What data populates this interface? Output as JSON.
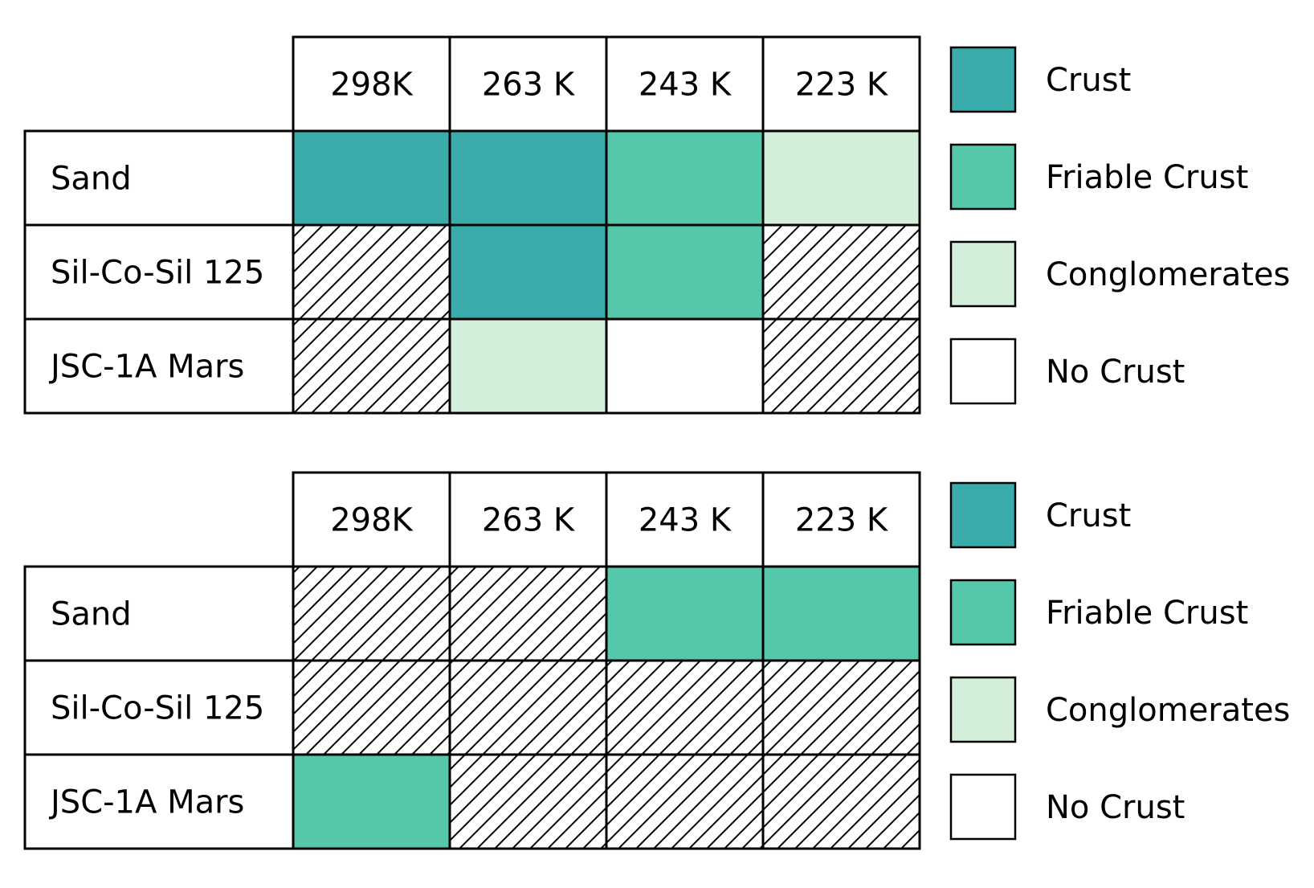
{
  "chart_data": [
    {
      "type": "heatmap",
      "columns": [
        "298K",
        "263 K",
        "243 K",
        "223 K"
      ],
      "rows": [
        "Sand",
        "Sil-Co-Sil 125",
        "JSC-1A Mars"
      ],
      "cells": [
        [
          "crust",
          "crust",
          "friable",
          "conglomerates"
        ],
        [
          "hatched",
          "crust",
          "friable",
          "hatched"
        ],
        [
          "hatched",
          "conglomerates",
          "none",
          "hatched"
        ]
      ],
      "legend": [
        {
          "key": "crust",
          "label": "Crust"
        },
        {
          "key": "friable",
          "label": "Friable Crust"
        },
        {
          "key": "conglomerates",
          "label": "Conglomerates"
        },
        {
          "key": "none",
          "label": "No Crust"
        }
      ]
    },
    {
      "type": "heatmap",
      "columns": [
        "298K",
        "263 K",
        "243 K",
        "223 K"
      ],
      "rows": [
        "Sand",
        "Sil-Co-Sil 125",
        "JSC-1A Mars"
      ],
      "cells": [
        [
          "hatched",
          "hatched",
          "friable",
          "friable"
        ],
        [
          "hatched",
          "hatched",
          "hatched",
          "hatched"
        ],
        [
          "friable",
          "hatched",
          "hatched",
          "hatched"
        ]
      ],
      "legend": [
        {
          "key": "crust",
          "label": "Crust"
        },
        {
          "key": "friable",
          "label": "Friable Crust"
        },
        {
          "key": "conglomerates",
          "label": "Conglomerates"
        },
        {
          "key": "none",
          "label": "No Crust"
        }
      ]
    }
  ],
  "colors": {
    "crust": "#3aabab",
    "friable": "#55c8ab",
    "conglomerates": "#d3eed9",
    "none": "#ffffff",
    "hatched": "#ffffff",
    "line": "#000000"
  }
}
